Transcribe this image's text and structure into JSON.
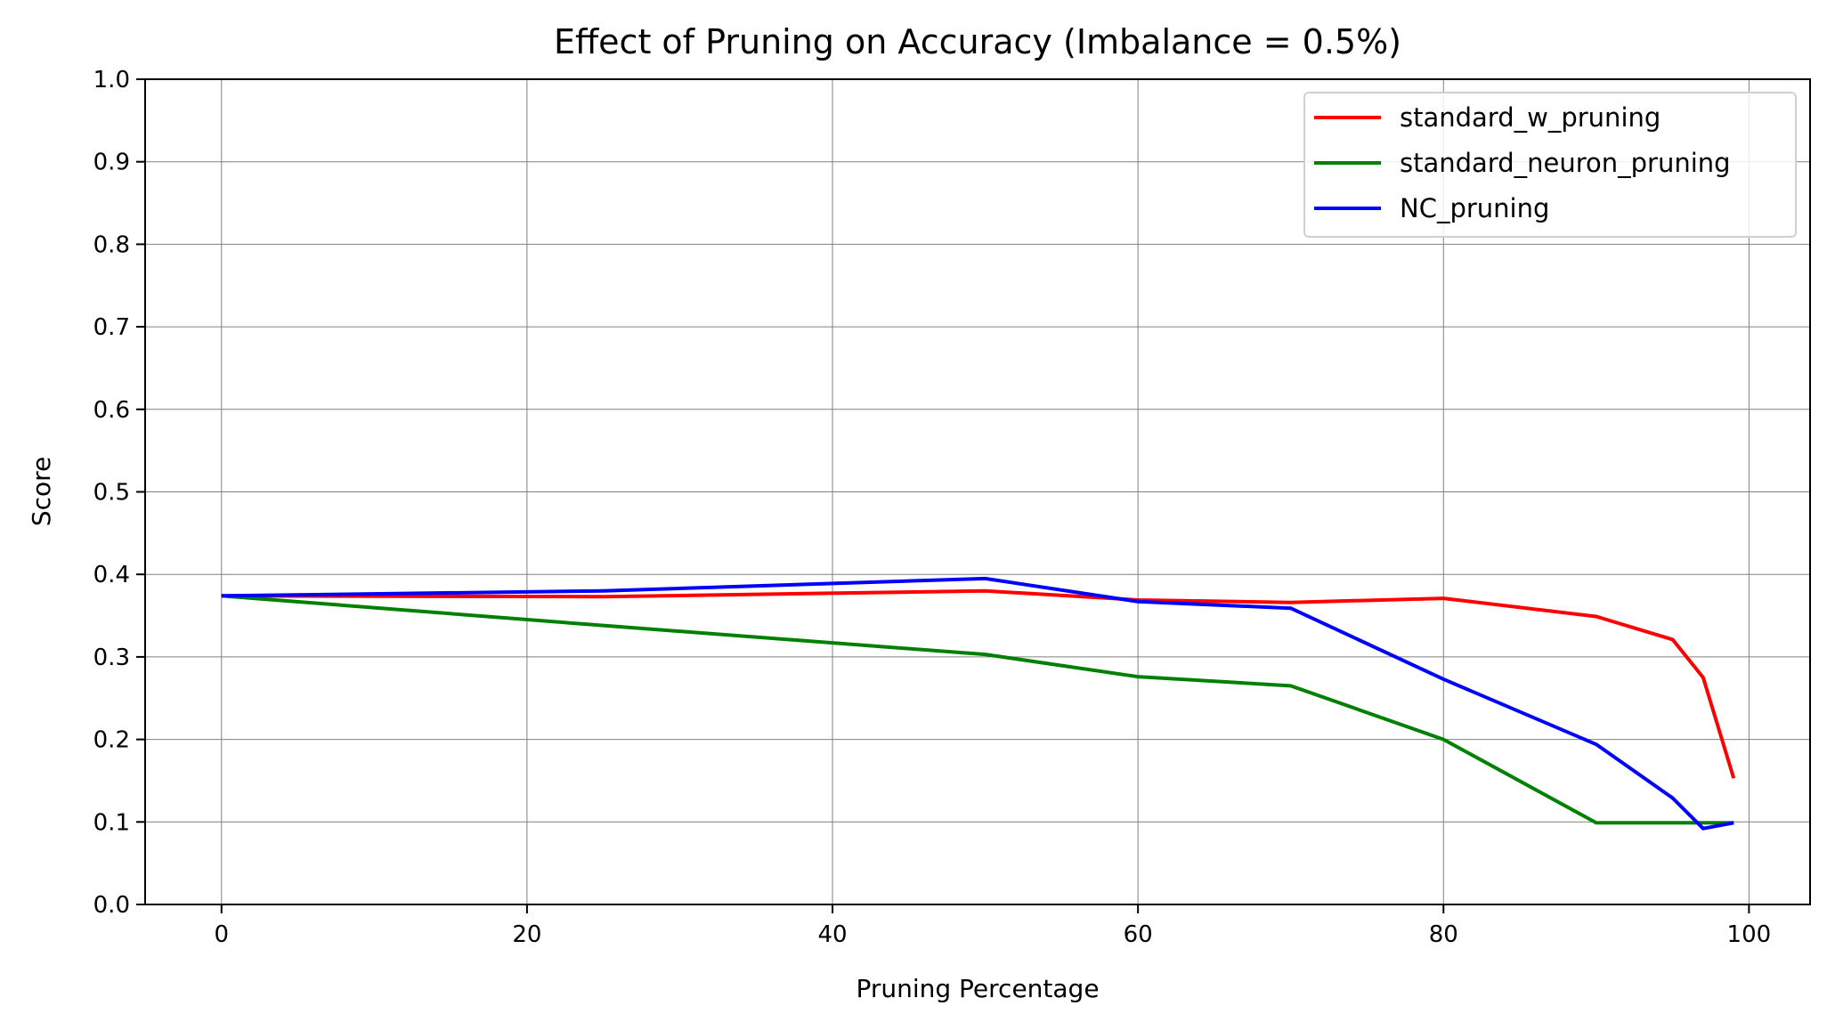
{
  "chart_data": {
    "type": "line",
    "title": "Effect of Pruning on Accuracy (Imbalance = 0.5%)",
    "xlabel": "Pruning Percentage",
    "ylabel": "Score",
    "xlim": [
      -5,
      104
    ],
    "ylim": [
      0.0,
      1.0
    ],
    "xticks": [
      0,
      20,
      40,
      60,
      80,
      100
    ],
    "xtick_labels": [
      "0",
      "20",
      "40",
      "60",
      "80",
      "100"
    ],
    "yticks": [
      0.0,
      0.1,
      0.2,
      0.3,
      0.4,
      0.5,
      0.6,
      0.7,
      0.8,
      0.9,
      1.0
    ],
    "ytick_labels": [
      "0.0",
      "0.1",
      "0.2",
      "0.3",
      "0.4",
      "0.5",
      "0.6",
      "0.7",
      "0.8",
      "0.9",
      "1.0"
    ],
    "grid": true,
    "legend_position": "top-right",
    "series": [
      {
        "name": "standard_w_pruning",
        "color": "#ff0000",
        "x": [
          0,
          25,
          50,
          60,
          70,
          80,
          90,
          95,
          97,
          99
        ],
        "y": [
          0.374,
          0.373,
          0.38,
          0.369,
          0.366,
          0.371,
          0.349,
          0.321,
          0.275,
          0.153
        ]
      },
      {
        "name": "standard_neuron_pruning",
        "color": "#008000",
        "x": [
          0,
          25,
          50,
          60,
          70,
          80,
          90,
          95,
          97,
          99
        ],
        "y": [
          0.374,
          0.338,
          0.303,
          0.276,
          0.265,
          0.2,
          0.099,
          0.099,
          0.099,
          0.099
        ]
      },
      {
        "name": "NC_pruning",
        "color": "#0000ff",
        "x": [
          0,
          25,
          50,
          60,
          70,
          80,
          90,
          95,
          97,
          99
        ],
        "y": [
          0.374,
          0.38,
          0.395,
          0.367,
          0.359,
          0.273,
          0.194,
          0.129,
          0.092,
          0.099
        ]
      }
    ]
  }
}
